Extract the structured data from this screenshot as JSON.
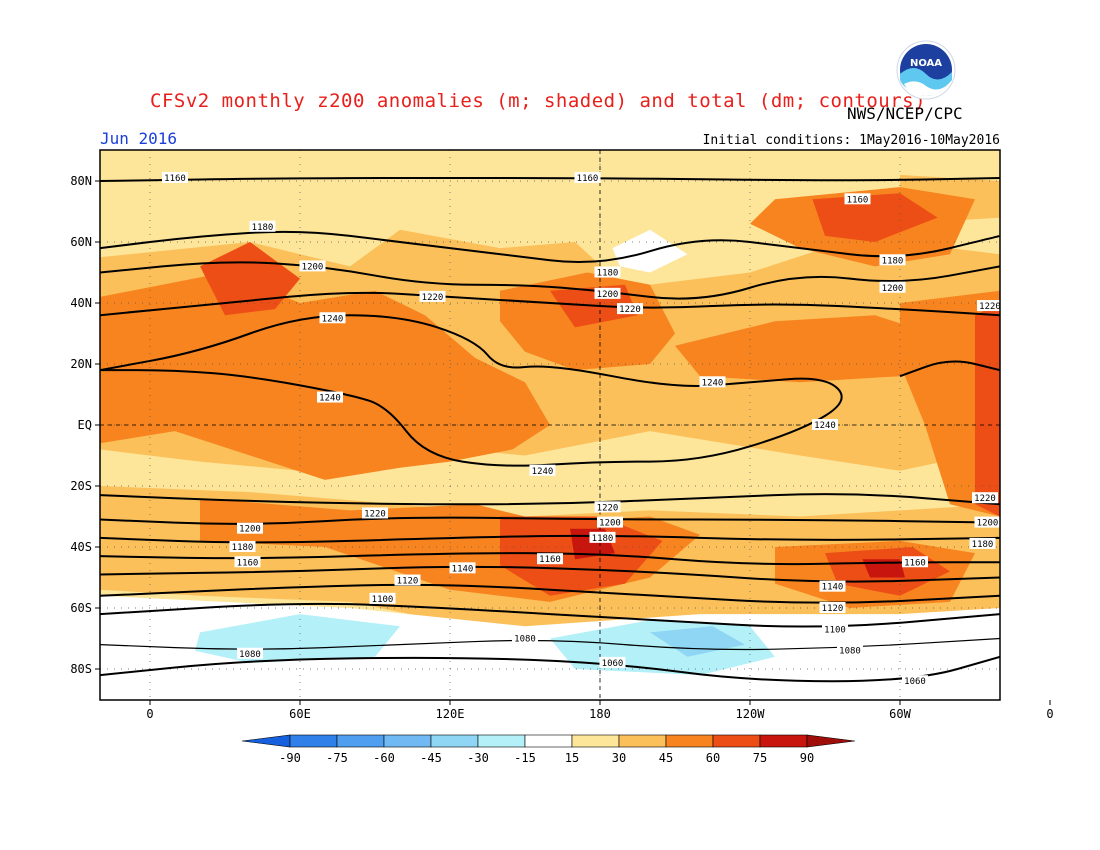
{
  "title": "CFSv2 monthly z200 anomalies (m; shaded) and total (dm; contours)",
  "agency": "NWS/NCEP/CPC",
  "logo_text": "NOAA",
  "month": "Jun 2016",
  "initial_conditions": "Initial conditions: 1May2016-10May2016",
  "colors": {
    "title": "#e8201c",
    "month": "#1a3fd8",
    "shade_15_30": "#fde59a",
    "shade_30_45": "#fbc05a",
    "shade_45_60": "#f7841f",
    "shade_60_75": "#ec4e16",
    "shade_75_90": "#c8160e",
    "neg_15_30": "#b3f0f8",
    "neg_30_45": "#8fd6f4"
  },
  "map": {
    "lat_ticks": [
      "80N",
      "60N",
      "40N",
      "20N",
      "EQ",
      "20S",
      "40S",
      "60S",
      "80S"
    ],
    "lon_ticks": [
      "0",
      "60E",
      "120E",
      "180",
      "120W",
      "60W",
      "0"
    ],
    "contour_labels": [
      {
        "text": "1160",
        "lon": 10,
        "lat": 81
      },
      {
        "text": "1160",
        "lon": 175,
        "lat": 81
      },
      {
        "text": "1160",
        "lon": 283,
        "lat": 74
      },
      {
        "text": "1180",
        "lon": 45,
        "lat": 65
      },
      {
        "text": "1200",
        "lon": 65,
        "lat": 52
      },
      {
        "text": "1180",
        "lon": 183,
        "lat": 50
      },
      {
        "text": "1180",
        "lon": 297,
        "lat": 54
      },
      {
        "text": "1200",
        "lon": 183,
        "lat": 43
      },
      {
        "text": "1200",
        "lon": 297,
        "lat": 45
      },
      {
        "text": "1220",
        "lon": 113,
        "lat": 42
      },
      {
        "text": "1220",
        "lon": 192,
        "lat": 38
      },
      {
        "text": "1220",
        "lon": 336,
        "lat": 39
      },
      {
        "text": "1240",
        "lon": 73,
        "lat": 35
      },
      {
        "text": "1240",
        "lon": 225,
        "lat": 14
      },
      {
        "text": "1240",
        "lon": 72,
        "lat": 9
      },
      {
        "text": "1240",
        "lon": 270,
        "lat": 0
      },
      {
        "text": "1240",
        "lon": 157,
        "lat": -15
      },
      {
        "text": "1220",
        "lon": 90,
        "lat": -29
      },
      {
        "text": "1220",
        "lon": 183,
        "lat": -27
      },
      {
        "text": "1220",
        "lon": 334,
        "lat": -24
      },
      {
        "text": "1200",
        "lon": 40,
        "lat": -34
      },
      {
        "text": "1200",
        "lon": 184,
        "lat": -32
      },
      {
        "text": "1200",
        "lon": 335,
        "lat": -32
      },
      {
        "text": "1180",
        "lon": 37,
        "lat": -40
      },
      {
        "text": "1180",
        "lon": 181,
        "lat": -37
      },
      {
        "text": "1180",
        "lon": 333,
        "lat": -39
      },
      {
        "text": "1160",
        "lon": 39,
        "lat": -45
      },
      {
        "text": "1160",
        "lon": 160,
        "lat": -44
      },
      {
        "text": "1160",
        "lon": 306,
        "lat": -45
      },
      {
        "text": "1140",
        "lon": 125,
        "lat": -47
      },
      {
        "text": "1140",
        "lon": 273,
        "lat": -53
      },
      {
        "text": "1120",
        "lon": 103,
        "lat": -51
      },
      {
        "text": "1120",
        "lon": 273,
        "lat": -60
      },
      {
        "text": "1100",
        "lon": 93,
        "lat": -57
      },
      {
        "text": "1100",
        "lon": 274,
        "lat": -67
      },
      {
        "text": "1080",
        "lon": 150,
        "lat": -70
      },
      {
        "text": "1080",
        "lon": 40,
        "lat": -75
      },
      {
        "text": "1080",
        "lon": 280,
        "lat": -74
      },
      {
        "text": "1060",
        "lon": 185,
        "lat": -78
      },
      {
        "text": "1060",
        "lon": 306,
        "lat": -84
      }
    ]
  },
  "colorbar": {
    "ticks": [
      "-90",
      "-75",
      "-60",
      "-45",
      "-30",
      "-15",
      "15",
      "30",
      "45",
      "60",
      "75",
      "90"
    ],
    "colors": [
      "#1560dc",
      "#2f80e8",
      "#4f9ef0",
      "#70b9f2",
      "#8fd6f4",
      "#b3f0f8",
      "#ffffff",
      "#fde59a",
      "#fbc05a",
      "#f7841f",
      "#ec4e16",
      "#c8160e",
      "#a00e0a"
    ]
  }
}
